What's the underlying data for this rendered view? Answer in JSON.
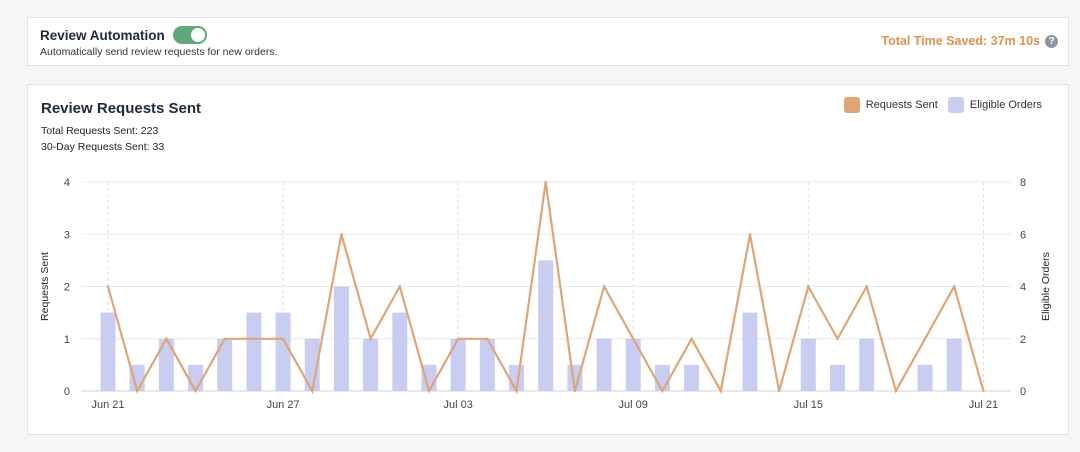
{
  "automation": {
    "title": "Review Automation",
    "toggle_on": true,
    "description": "Automatically send review requests for new orders.",
    "time_saved": "Total Time Saved: 37m 10s",
    "help_icon": "?"
  },
  "chart": {
    "title": "Review Requests Sent",
    "total_requests": "Total Requests Sent: 223",
    "thirty_day_requests": "30-Day Requests Sent: 33",
    "legend": [
      {
        "label": "Requests Sent",
        "color": "#dea678"
      },
      {
        "label": "Eligible Orders",
        "color": "#c9cdf2"
      }
    ]
  },
  "chart_data": {
    "type": "bar",
    "categories": [
      "Jun 21",
      "Jun 22",
      "Jun 23",
      "Jun 24",
      "Jun 25",
      "Jun 26",
      "Jun 27",
      "Jun 28",
      "Jun 29",
      "Jun 30",
      "Jul 01",
      "Jul 02",
      "Jul 03",
      "Jul 04",
      "Jul 05",
      "Jul 06",
      "Jul 07",
      "Jul 08",
      "Jul 09",
      "Jul 10",
      "Jul 11",
      "Jul 12",
      "Jul 13",
      "Jul 14",
      "Jul 15",
      "Jul 16",
      "Jul 17",
      "Jul 18",
      "Jul 19",
      "Jul 20",
      "Jul 21"
    ],
    "x_tick_labels": [
      "Jun 21",
      "Jun 27",
      "Jul 03",
      "Jul 09",
      "Jul 15",
      "Jul 21"
    ],
    "series": [
      {
        "name": "Eligible Orders",
        "type": "bar",
        "axis": "right",
        "color": "#c9cdf2",
        "values": [
          3,
          1,
          2,
          1,
          2,
          3,
          3,
          2,
          4,
          2,
          3,
          1,
          2,
          2,
          1,
          5,
          1,
          2,
          2,
          1,
          1,
          0,
          3,
          0,
          2,
          1,
          2,
          0,
          1,
          2,
          0
        ]
      },
      {
        "name": "Requests Sent",
        "type": "line",
        "axis": "left",
        "color": "#dea678",
        "values": [
          2,
          0,
          1,
          0,
          1,
          1,
          1,
          0,
          3,
          1,
          2,
          0,
          1,
          1,
          0,
          4,
          0,
          2,
          1,
          0,
          1,
          0,
          3,
          0,
          2,
          1,
          2,
          0,
          1,
          2,
          0
        ]
      }
    ],
    "ylabel": "Requests Sent",
    "ylabel_right": "Eligible Orders",
    "ylim": [
      0,
      4
    ],
    "ylim_right": [
      0,
      8
    ],
    "y_ticks": [
      0,
      1,
      2,
      3,
      4
    ],
    "y_ticks_right": [
      0,
      2,
      4,
      6,
      8
    ],
    "grid": true
  }
}
